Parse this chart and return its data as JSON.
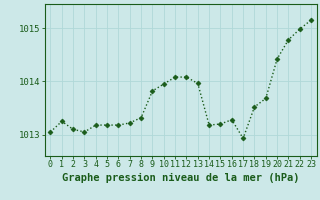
{
  "x": [
    0,
    1,
    2,
    3,
    4,
    5,
    6,
    7,
    8,
    9,
    10,
    11,
    12,
    13,
    14,
    15,
    16,
    17,
    18,
    19,
    20,
    21,
    22,
    23
  ],
  "y": [
    1013.05,
    1013.25,
    1013.1,
    1013.05,
    1013.18,
    1013.18,
    1013.18,
    1013.22,
    1013.32,
    1013.82,
    1013.95,
    1014.08,
    1014.08,
    1013.96,
    1013.18,
    1013.2,
    1013.28,
    1012.93,
    1013.52,
    1013.68,
    1014.42,
    1014.78,
    1014.98,
    1015.15
  ],
  "line_color": "#1a5c1a",
  "marker": "D",
  "marker_size": 2.5,
  "line_width": 1.0,
  "bg_color": "#cce8e8",
  "grid_color": "#b0d8d8",
  "tick_color": "#1a5c1a",
  "label_color": "#1a5c1a",
  "xlabel": "Graphe pression niveau de la mer (hPa)",
  "xlabel_fontsize": 7.5,
  "xlabel_fontweight": "bold",
  "ytick_labels": [
    "1013",
    "1014",
    "1015"
  ],
  "ytick_values": [
    1013,
    1014,
    1015
  ],
  "ylim": [
    1012.6,
    1015.45
  ],
  "xlim": [
    -0.5,
    23.5
  ],
  "xtick_fontsize": 6,
  "ytick_fontsize": 6.5
}
